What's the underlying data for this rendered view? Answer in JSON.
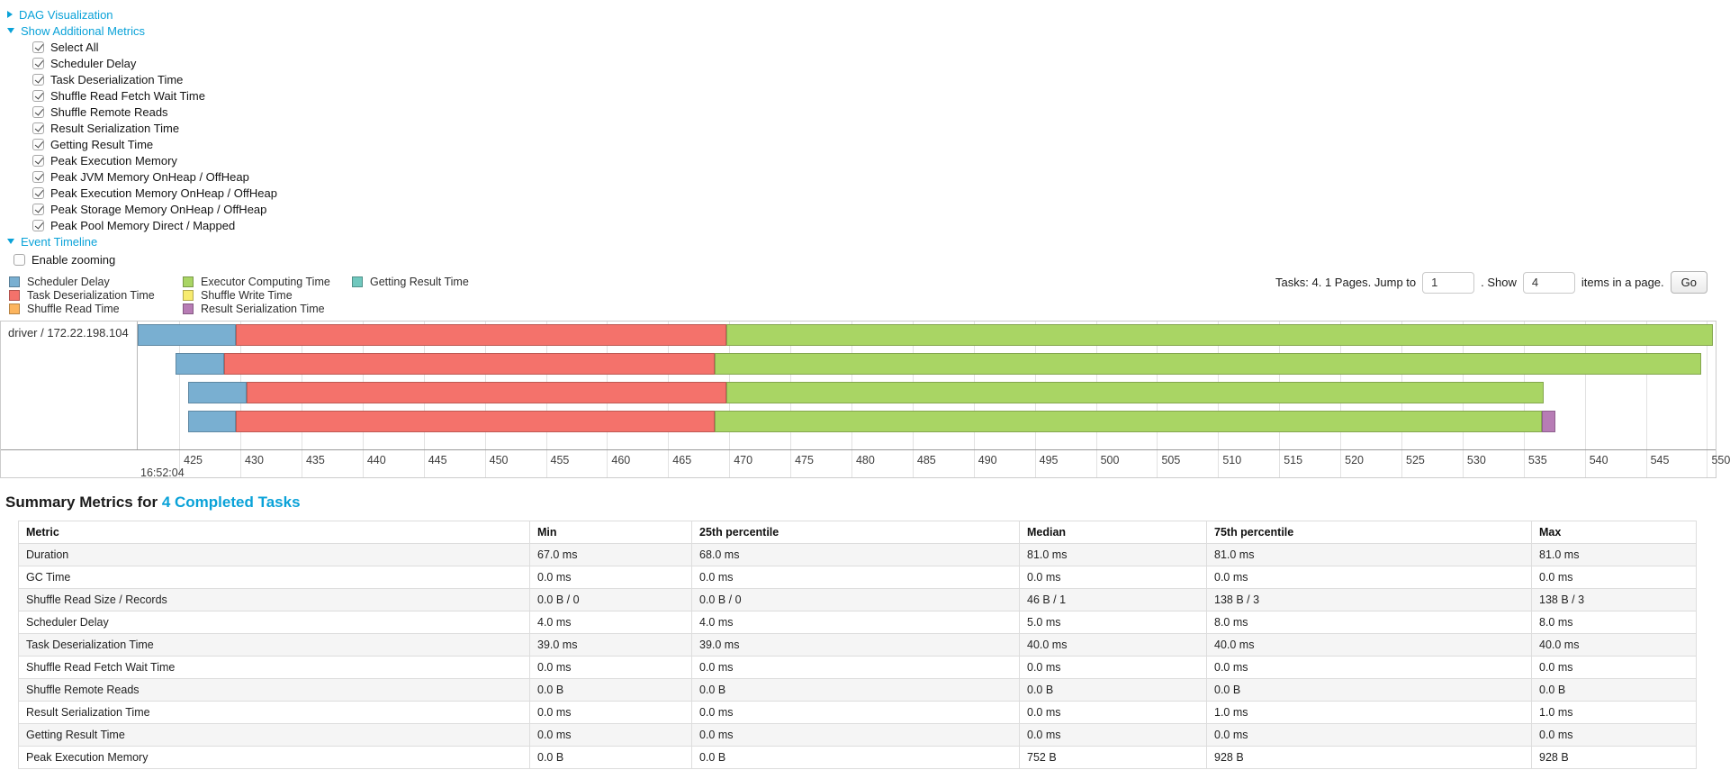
{
  "colors": {
    "scheduler_delay": "#79AFD1",
    "task_deserialization": "#F4726B",
    "shuffle_read": "#FCB45D",
    "executor_computing": "#A9D564",
    "shuffle_write": "#F7EB6F",
    "result_serialization": "#B77CB5",
    "getting_result": "#70C8BE",
    "link": "#0aa2d8"
  },
  "panels": {
    "dag_label": "DAG Visualization",
    "metrics_label": "Show Additional Metrics",
    "timeline_label": "Event Timeline",
    "enable_zooming_label": "Enable zooming",
    "enable_zooming_checked": false
  },
  "metric_checkboxes": [
    {
      "label": "Select All",
      "checked": true
    },
    {
      "label": "Scheduler Delay",
      "checked": true
    },
    {
      "label": "Task Deserialization Time",
      "checked": true
    },
    {
      "label": "Shuffle Read Fetch Wait Time",
      "checked": true
    },
    {
      "label": "Shuffle Remote Reads",
      "checked": true
    },
    {
      "label": "Result Serialization Time",
      "checked": true
    },
    {
      "label": "Getting Result Time",
      "checked": true
    },
    {
      "label": "Peak Execution Memory",
      "checked": true
    },
    {
      "label": "Peak JVM Memory OnHeap / OffHeap",
      "checked": true
    },
    {
      "label": "Peak Execution Memory OnHeap / OffHeap",
      "checked": true
    },
    {
      "label": "Peak Storage Memory OnHeap / OffHeap",
      "checked": true
    },
    {
      "label": "Peak Pool Memory Direct / Mapped",
      "checked": true
    }
  ],
  "legend": {
    "columns": [
      [
        {
          "label": "Scheduler Delay",
          "color_key": "scheduler_delay"
        },
        {
          "label": "Task Deserialization Time",
          "color_key": "task_deserialization"
        },
        {
          "label": "Shuffle Read Time",
          "color_key": "shuffle_read"
        }
      ],
      [
        {
          "label": "Executor Computing Time",
          "color_key": "executor_computing"
        },
        {
          "label": "Shuffle Write Time",
          "color_key": "shuffle_write"
        },
        {
          "label": "Result Serialization Time",
          "color_key": "result_serialization"
        }
      ],
      [
        {
          "label": "Getting Result Time",
          "color_key": "getting_result"
        }
      ]
    ]
  },
  "pagination": {
    "prefix": "Tasks: 4. 1 Pages. Jump to",
    "jump_value": "1",
    "mid": ". Show",
    "show_value": "4",
    "suffix": "items in a page.",
    "go_label": "Go"
  },
  "chart_data": {
    "type": "timeline",
    "group_label": "driver / 172.22.198.104",
    "axis": {
      "min": 421.6,
      "max": 550.7,
      "ticks_from": 425,
      "ticks_to": 550,
      "tick_step": 5,
      "base_time_label": "16:52:04"
    },
    "tasks": [
      {
        "segments": [
          {
            "kind": "scheduler_delay",
            "start": 421.6,
            "end": 429.6
          },
          {
            "kind": "task_deserialization",
            "start": 429.6,
            "end": 469.8
          },
          {
            "kind": "executor_computing",
            "start": 469.8,
            "end": 550.5
          }
        ]
      },
      {
        "segments": [
          {
            "kind": "scheduler_delay",
            "start": 424.7,
            "end": 428.7
          },
          {
            "kind": "task_deserialization",
            "start": 428.7,
            "end": 468.8
          },
          {
            "kind": "executor_computing",
            "start": 468.8,
            "end": 549.5
          }
        ]
      },
      {
        "segments": [
          {
            "kind": "scheduler_delay",
            "start": 425.7,
            "end": 430.5
          },
          {
            "kind": "task_deserialization",
            "start": 430.5,
            "end": 469.8
          },
          {
            "kind": "executor_computing",
            "start": 469.8,
            "end": 536.6
          }
        ]
      },
      {
        "segments": [
          {
            "kind": "scheduler_delay",
            "start": 425.7,
            "end": 429.6
          },
          {
            "kind": "task_deserialization",
            "start": 429.6,
            "end": 468.8
          },
          {
            "kind": "executor_computing",
            "start": 468.8,
            "end": 536.5
          },
          {
            "kind": "result_serialization",
            "start": 536.5,
            "end": 537.6
          }
        ]
      }
    ]
  },
  "summary": {
    "title_prefix": "Summary Metrics for ",
    "title_link": "4 Completed Tasks",
    "table": {
      "headers": [
        "Metric",
        "Min",
        "25th percentile",
        "Median",
        "75th percentile",
        "Max"
      ],
      "rows": [
        {
          "metric": "Duration",
          "values": [
            "67.0 ms",
            "68.0 ms",
            "81.0 ms",
            "81.0 ms",
            "81.0 ms"
          ]
        },
        {
          "metric": "GC Time",
          "values": [
            "0.0 ms",
            "0.0 ms",
            "0.0 ms",
            "0.0 ms",
            "0.0 ms"
          ]
        },
        {
          "metric": "Shuffle Read Size / Records",
          "values": [
            "0.0 B / 0",
            "0.0 B / 0",
            "46 B / 1",
            "138 B / 3",
            "138 B / 3"
          ]
        },
        {
          "metric": "Scheduler Delay",
          "values": [
            "4.0 ms",
            "4.0 ms",
            "5.0 ms",
            "8.0 ms",
            "8.0 ms"
          ]
        },
        {
          "metric": "Task Deserialization Time",
          "values": [
            "39.0 ms",
            "39.0 ms",
            "40.0 ms",
            "40.0 ms",
            "40.0 ms"
          ]
        },
        {
          "metric": "Shuffle Read Fetch Wait Time",
          "values": [
            "0.0 ms",
            "0.0 ms",
            "0.0 ms",
            "0.0 ms",
            "0.0 ms"
          ]
        },
        {
          "metric": "Shuffle Remote Reads",
          "values": [
            "0.0 B",
            "0.0 B",
            "0.0 B",
            "0.0 B",
            "0.0 B"
          ]
        },
        {
          "metric": "Result Serialization Time",
          "values": [
            "0.0 ms",
            "0.0 ms",
            "0.0 ms",
            "1.0 ms",
            "1.0 ms"
          ]
        },
        {
          "metric": "Getting Result Time",
          "values": [
            "0.0 ms",
            "0.0 ms",
            "0.0 ms",
            "0.0 ms",
            "0.0 ms"
          ]
        },
        {
          "metric": "Peak Execution Memory",
          "values": [
            "0.0 B",
            "0.0 B",
            "752 B",
            "928 B",
            "928 B"
          ]
        }
      ]
    }
  }
}
